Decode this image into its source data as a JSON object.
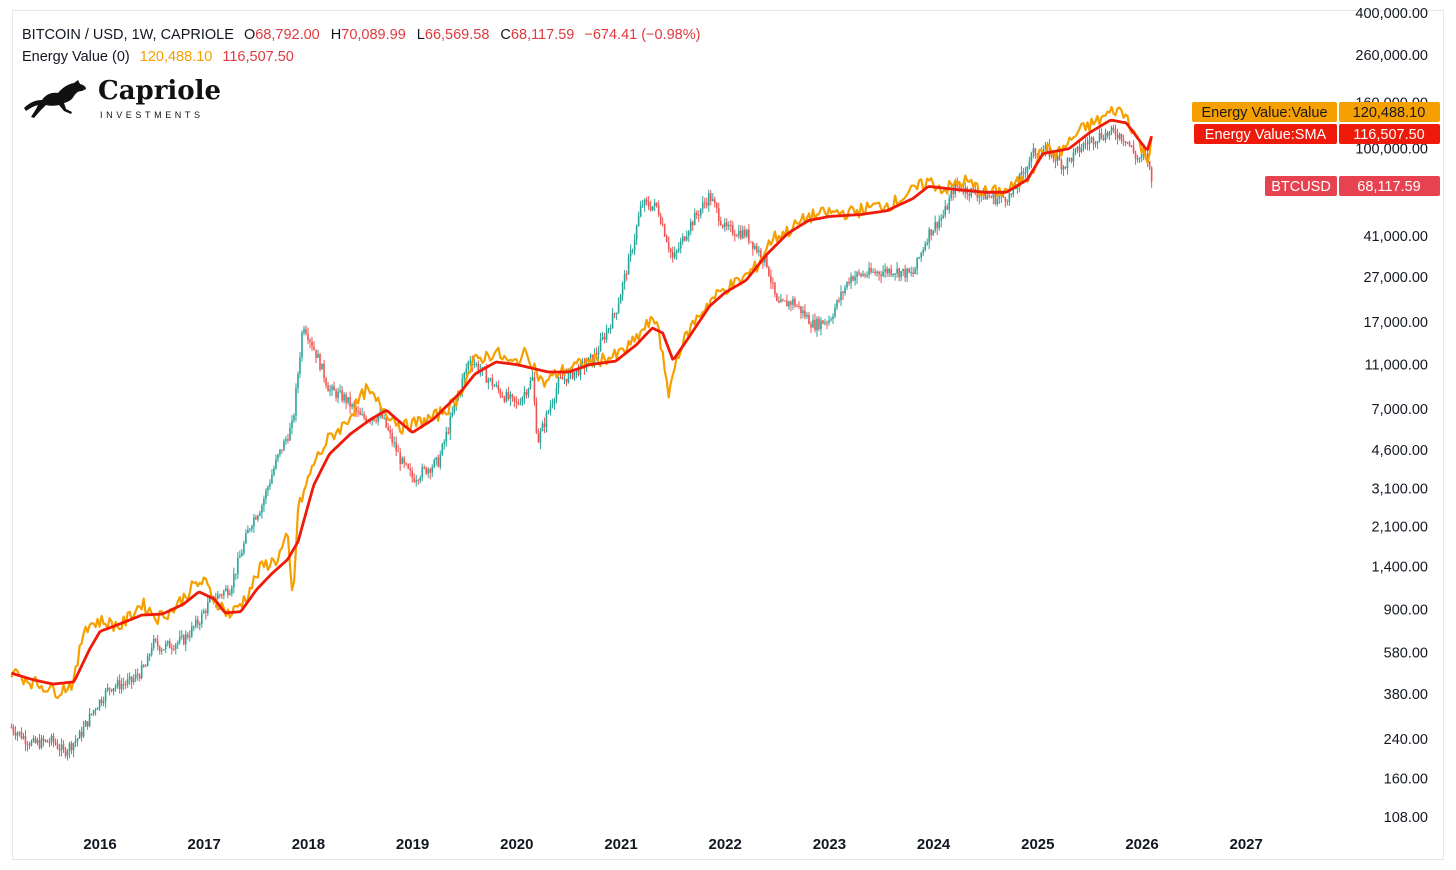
{
  "header": {
    "symbol": "BITCOIN / USD, 1W, CAPRIOLE",
    "open_key": "O",
    "open": "68,792.00",
    "high_key": "H",
    "high": "70,089.99",
    "low_key": "L",
    "low": "66,569.58",
    "close_key": "C",
    "close": "68,117.59",
    "change": "−674.41 (−0.98%)",
    "indicator": "Energy Value (0)",
    "indicator_value": "120,488.10",
    "indicator_sma": "116,507.50"
  },
  "logo": {
    "brand": "Capriole",
    "sub": "INVESTMENTS"
  },
  "colors": {
    "energy_value": "#f5a000",
    "energy_sma": "#ef1a0a",
    "candle_up": "#26a69a",
    "candle_down": "#ef5350",
    "btc_label": "#e74250"
  },
  "chart_data": {
    "type": "line",
    "y_scale": "log",
    "ylim": [
      90,
      420000
    ],
    "xlim": [
      "2015-03",
      "2027-10"
    ],
    "y_ticks": [
      "400,000.00",
      "260,000.00",
      "160,000.00",
      "100,000.00",
      "41,000.00",
      "27,000.00",
      "17,000.00",
      "11,000.00",
      "7,000.00",
      "4,600.00",
      "3,100.00",
      "2,100.00",
      "1,400.00",
      "900.00",
      "580.00",
      "380.00",
      "240.00",
      "160.00",
      "108.00"
    ],
    "y_tick_values": [
      400000,
      260000,
      160000,
      100000,
      41000,
      27000,
      17000,
      11000,
      7000,
      4600,
      3100,
      2100,
      1400,
      900,
      580,
      380,
      240,
      160,
      108
    ],
    "x_ticks": [
      "2016",
      "2017",
      "2018",
      "2019",
      "2020",
      "2021",
      "2022",
      "2023",
      "2024",
      "2025",
      "2026",
      "2027"
    ],
    "x_tick_values": [
      2016,
      2017,
      2018,
      2019,
      2020,
      2021,
      2022,
      2023,
      2024,
      2025,
      2026,
      2027
    ],
    "series": [
      {
        "name": "Energy Value:Value",
        "last_label": "120,488.10",
        "points": [
          [
            2015.15,
            480
          ],
          [
            2015.35,
            430
          ],
          [
            2015.6,
            390
          ],
          [
            2015.75,
            430
          ],
          [
            2015.85,
            760
          ],
          [
            2016.0,
            800
          ],
          [
            2016.2,
            760
          ],
          [
            2016.4,
            960
          ],
          [
            2016.55,
            830
          ],
          [
            2016.7,
            900
          ],
          [
            2016.9,
            1150
          ],
          [
            2017.0,
            1200
          ],
          [
            2017.1,
            1000
          ],
          [
            2017.25,
            850
          ],
          [
            2017.4,
            1020
          ],
          [
            2017.55,
            1400
          ],
          [
            2017.7,
            1500
          ],
          [
            2017.8,
            1900
          ],
          [
            2017.85,
            950
          ],
          [
            2017.9,
            2500
          ],
          [
            2018.05,
            4000
          ],
          [
            2018.2,
            5200
          ],
          [
            2018.35,
            6000
          ],
          [
            2018.55,
            8500
          ],
          [
            2018.75,
            6800
          ],
          [
            2018.9,
            5800
          ],
          [
            2019.0,
            6000
          ],
          [
            2019.2,
            6400
          ],
          [
            2019.4,
            7400
          ],
          [
            2019.6,
            11500
          ],
          [
            2019.8,
            12500
          ],
          [
            2019.95,
            11000
          ],
          [
            2020.1,
            12500
          ],
          [
            2020.25,
            9000
          ],
          [
            2020.4,
            10200
          ],
          [
            2020.6,
            11000
          ],
          [
            2020.75,
            11500
          ],
          [
            2020.95,
            12000
          ],
          [
            2021.1,
            13500
          ],
          [
            2021.25,
            16500
          ],
          [
            2021.35,
            17500
          ],
          [
            2021.45,
            8000
          ],
          [
            2021.55,
            12500
          ],
          [
            2021.7,
            17000
          ],
          [
            2021.85,
            21000
          ],
          [
            2022.0,
            24000
          ],
          [
            2022.15,
            26000
          ],
          [
            2022.3,
            30000
          ],
          [
            2022.45,
            40000
          ],
          [
            2022.6,
            43000
          ],
          [
            2022.8,
            50000
          ],
          [
            2023.0,
            52000
          ],
          [
            2023.2,
            52000
          ],
          [
            2023.4,
            55000
          ],
          [
            2023.6,
            57000
          ],
          [
            2023.8,
            65000
          ],
          [
            2023.95,
            72000
          ],
          [
            2024.1,
            66000
          ],
          [
            2024.3,
            72000
          ],
          [
            2024.5,
            64000
          ],
          [
            2024.7,
            65000
          ],
          [
            2024.9,
            75000
          ],
          [
            2025.05,
            100000
          ],
          [
            2025.2,
            95000
          ],
          [
            2025.4,
            120000
          ],
          [
            2025.6,
            135000
          ],
          [
            2025.75,
            150000
          ],
          [
            2025.85,
            140000
          ],
          [
            2026.0,
            100000
          ],
          [
            2026.05,
            88000
          ],
          [
            2026.1,
            120488
          ]
        ]
      },
      {
        "name": "Energy Value:SMA",
        "last_label": "116,507.50",
        "points": [
          [
            2015.15,
            470
          ],
          [
            2015.35,
            440
          ],
          [
            2015.55,
            420
          ],
          [
            2015.75,
            430
          ],
          [
            2015.9,
            600
          ],
          [
            2016.0,
            720
          ],
          [
            2016.2,
            780
          ],
          [
            2016.4,
            850
          ],
          [
            2016.6,
            860
          ],
          [
            2016.8,
            950
          ],
          [
            2016.95,
            1080
          ],
          [
            2017.1,
            1000
          ],
          [
            2017.2,
            870
          ],
          [
            2017.35,
            880
          ],
          [
            2017.5,
            1100
          ],
          [
            2017.65,
            1300
          ],
          [
            2017.8,
            1500
          ],
          [
            2017.9,
            1800
          ],
          [
            2018.05,
            3200
          ],
          [
            2018.2,
            4400
          ],
          [
            2018.4,
            5400
          ],
          [
            2018.6,
            6300
          ],
          [
            2018.75,
            6900
          ],
          [
            2018.9,
            6000
          ],
          [
            2019.0,
            5500
          ],
          [
            2019.2,
            6300
          ],
          [
            2019.45,
            8200
          ],
          [
            2019.6,
            10000
          ],
          [
            2019.8,
            11300
          ],
          [
            2020.0,
            11000
          ],
          [
            2020.3,
            10200
          ],
          [
            2020.5,
            10200
          ],
          [
            2020.7,
            11000
          ],
          [
            2020.95,
            11400
          ],
          [
            2021.15,
            13500
          ],
          [
            2021.3,
            16000
          ],
          [
            2021.4,
            15200
          ],
          [
            2021.5,
            11500
          ],
          [
            2021.65,
            14500
          ],
          [
            2021.85,
            20000
          ],
          [
            2022.0,
            23000
          ],
          [
            2022.2,
            26000
          ],
          [
            2022.4,
            34000
          ],
          [
            2022.6,
            42000
          ],
          [
            2022.8,
            48000
          ],
          [
            2023.0,
            50000
          ],
          [
            2023.3,
            51000
          ],
          [
            2023.55,
            53000
          ],
          [
            2023.8,
            60000
          ],
          [
            2023.95,
            68000
          ],
          [
            2024.2,
            66000
          ],
          [
            2024.5,
            64000
          ],
          [
            2024.7,
            64000
          ],
          [
            2024.9,
            73000
          ],
          [
            2025.05,
            95000
          ],
          [
            2025.3,
            100000
          ],
          [
            2025.5,
            118000
          ],
          [
            2025.7,
            134000
          ],
          [
            2025.85,
            130000
          ],
          [
            2026.0,
            105000
          ],
          [
            2026.05,
            98000
          ],
          [
            2026.1,
            116507
          ]
        ]
      },
      {
        "name": "BTCUSD",
        "last_label": "68,117.59",
        "points": [
          [
            2015.15,
            270
          ],
          [
            2015.35,
            228
          ],
          [
            2015.55,
            235
          ],
          [
            2015.65,
            210
          ],
          [
            2015.8,
            245
          ],
          [
            2015.95,
            330
          ],
          [
            2016.1,
            410
          ],
          [
            2016.3,
            430
          ],
          [
            2016.45,
            510
          ],
          [
            2016.5,
            640
          ],
          [
            2016.6,
            610
          ],
          [
            2016.8,
            660
          ],
          [
            2016.95,
            800
          ],
          [
            2017.05,
            970
          ],
          [
            2017.15,
            1050
          ],
          [
            2017.25,
            1130
          ],
          [
            2017.45,
            2200
          ],
          [
            2017.55,
            2600
          ],
          [
            2017.7,
            4200
          ],
          [
            2017.85,
            6000
          ],
          [
            2017.95,
            17000
          ],
          [
            2018.1,
            11500
          ],
          [
            2018.2,
            8500
          ],
          [
            2018.35,
            7800
          ],
          [
            2018.5,
            6400
          ],
          [
            2018.7,
            6500
          ],
          [
            2018.9,
            4000
          ],
          [
            2019.0,
            3450
          ],
          [
            2019.25,
            4100
          ],
          [
            2019.45,
            8500
          ],
          [
            2019.55,
            11800
          ],
          [
            2019.7,
            9800
          ],
          [
            2019.85,
            8200
          ],
          [
            2020.0,
            7300
          ],
          [
            2020.15,
            9500
          ],
          [
            2020.2,
            5000
          ],
          [
            2020.4,
            9200
          ],
          [
            2020.6,
            10500
          ],
          [
            2020.75,
            12000
          ],
          [
            2020.95,
            19000
          ],
          [
            2021.1,
            35000
          ],
          [
            2021.2,
            57000
          ],
          [
            2021.35,
            55000
          ],
          [
            2021.5,
            32000
          ],
          [
            2021.65,
            45000
          ],
          [
            2021.85,
            62000
          ],
          [
            2022.0,
            44000
          ],
          [
            2022.2,
            42000
          ],
          [
            2022.4,
            31000
          ],
          [
            2022.5,
            20000
          ],
          [
            2022.65,
            21000
          ],
          [
            2022.85,
            16500
          ],
          [
            2023.0,
            17500
          ],
          [
            2023.2,
            27000
          ],
          [
            2023.4,
            28000
          ],
          [
            2023.6,
            29000
          ],
          [
            2023.8,
            27500
          ],
          [
            2023.95,
            42000
          ],
          [
            2024.1,
            51000
          ],
          [
            2024.2,
            68000
          ],
          [
            2024.4,
            64000
          ],
          [
            2024.6,
            60000
          ],
          [
            2024.75,
            62000
          ],
          [
            2024.95,
            95000
          ],
          [
            2025.1,
            98000
          ],
          [
            2025.25,
            84000
          ],
          [
            2025.45,
            105000
          ],
          [
            2025.6,
            115000
          ],
          [
            2025.75,
            118000
          ],
          [
            2025.85,
            110000
          ],
          [
            2025.95,
            90000
          ],
          [
            2026.05,
            92000
          ],
          [
            2026.1,
            68117
          ]
        ]
      }
    ]
  }
}
